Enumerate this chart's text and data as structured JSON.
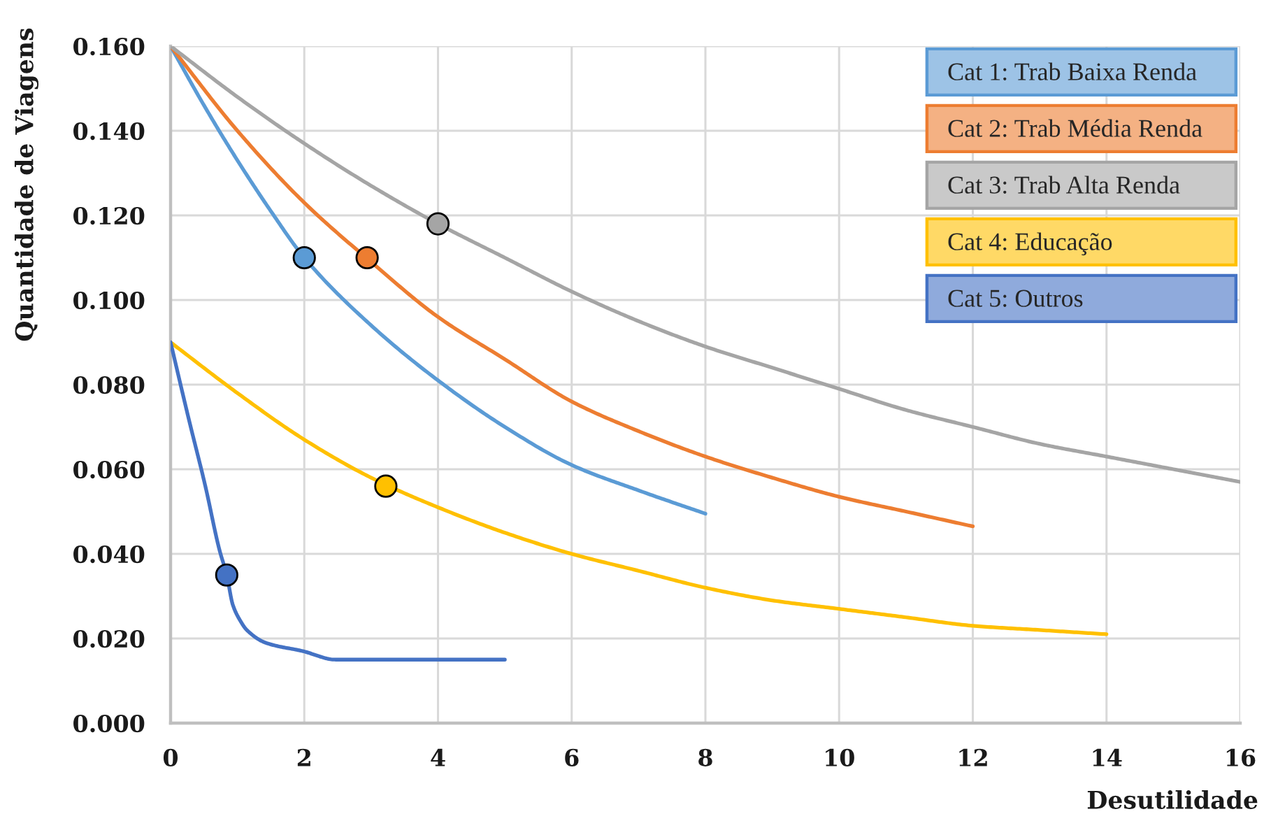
{
  "chart_data": {
    "type": "line",
    "xlabel": "Desutilidade",
    "ylabel": "Quantidade de Viagens",
    "xlim": [
      0,
      16
    ],
    "ylim": [
      0,
      0.16
    ],
    "xticks": [
      0,
      2,
      4,
      6,
      8,
      10,
      12,
      14,
      16
    ],
    "yticks": [
      {
        "value": 0,
        "label": "0.000"
      },
      {
        "value": 0.02,
        "label": "0.020"
      },
      {
        "value": 0.04,
        "label": "0.040"
      },
      {
        "value": 0.06,
        "label": "0.060"
      },
      {
        "value": 0.08,
        "label": "0.080"
      },
      {
        "value": 0.1,
        "label": "0.100"
      },
      {
        "value": 0.12,
        "label": "0.120"
      },
      {
        "value": 0.14,
        "label": "0.140"
      },
      {
        "value": 0.16,
        "label": "0.160"
      }
    ],
    "grid": true,
    "legend": "top right",
    "series": [
      {
        "name": "Cat 1: Trab Baixa Renda",
        "color": "#5b9bd5",
        "x": [
          0,
          0.5,
          1,
          1.5,
          2,
          3,
          4,
          5,
          6,
          7,
          8
        ],
        "values": [
          0.16,
          0.146,
          0.133,
          0.121,
          0.11,
          0.094,
          0.081,
          0.07,
          0.061,
          0.055,
          0.0495
        ]
      },
      {
        "name": "Cat 2: Trab Média Renda",
        "color": "#ed7d31",
        "x": [
          0,
          1,
          2,
          3,
          4,
          5,
          6,
          7,
          8,
          9,
          10,
          11,
          12
        ],
        "values": [
          0.16,
          0.14,
          0.123,
          0.109,
          0.096,
          0.086,
          0.076,
          0.069,
          0.063,
          0.058,
          0.0535,
          0.05,
          0.0465
        ]
      },
      {
        "name": "Cat 3: Trab Alta Renda",
        "color": "#a5a5a5",
        "x": [
          0,
          1,
          2,
          3,
          4,
          5,
          6,
          7,
          8,
          9,
          10,
          11,
          12,
          13,
          14,
          15,
          16
        ],
        "values": [
          0.16,
          0.148,
          0.137,
          0.127,
          0.118,
          0.11,
          0.102,
          0.095,
          0.089,
          0.084,
          0.079,
          0.074,
          0.07,
          0.066,
          0.063,
          0.06,
          0.057
        ]
      },
      {
        "name": "Cat 4: Educação",
        "color": "#ffc000",
        "x": [
          0,
          1,
          2,
          3,
          4,
          5,
          6,
          7,
          8,
          9,
          10,
          11,
          12,
          13,
          14
        ],
        "values": [
          0.09,
          0.078,
          0.067,
          0.058,
          0.051,
          0.045,
          0.04,
          0.036,
          0.032,
          0.029,
          0.027,
          0.025,
          0.023,
          0.022,
          0.021
        ]
      },
      {
        "name": "Cat 5: Outros",
        "color": "#4472c4",
        "x": [
          0,
          0.27,
          0.52,
          0.73,
          0.84,
          0.93,
          1.05,
          1.14,
          1.42,
          1.98,
          2.47,
          3.37,
          5.0
        ],
        "values": [
          0.09,
          0.072,
          0.056,
          0.041,
          0.035,
          0.028,
          0.024,
          0.022,
          0.019,
          0.017,
          0.015,
          0.015,
          0.015
        ]
      },
      {
        "type": "scatter",
        "marker": "circle",
        "x": [
          2.0,
          2.94,
          4.0,
          3.22,
          0.84
        ],
        "values": [
          0.11,
          0.11,
          0.118,
          0.056,
          0.035
        ],
        "colors": [
          "#5b9bd5",
          "#ed7d31",
          "#a5a5a5",
          "#ffc000",
          "#4472c4"
        ]
      }
    ]
  }
}
